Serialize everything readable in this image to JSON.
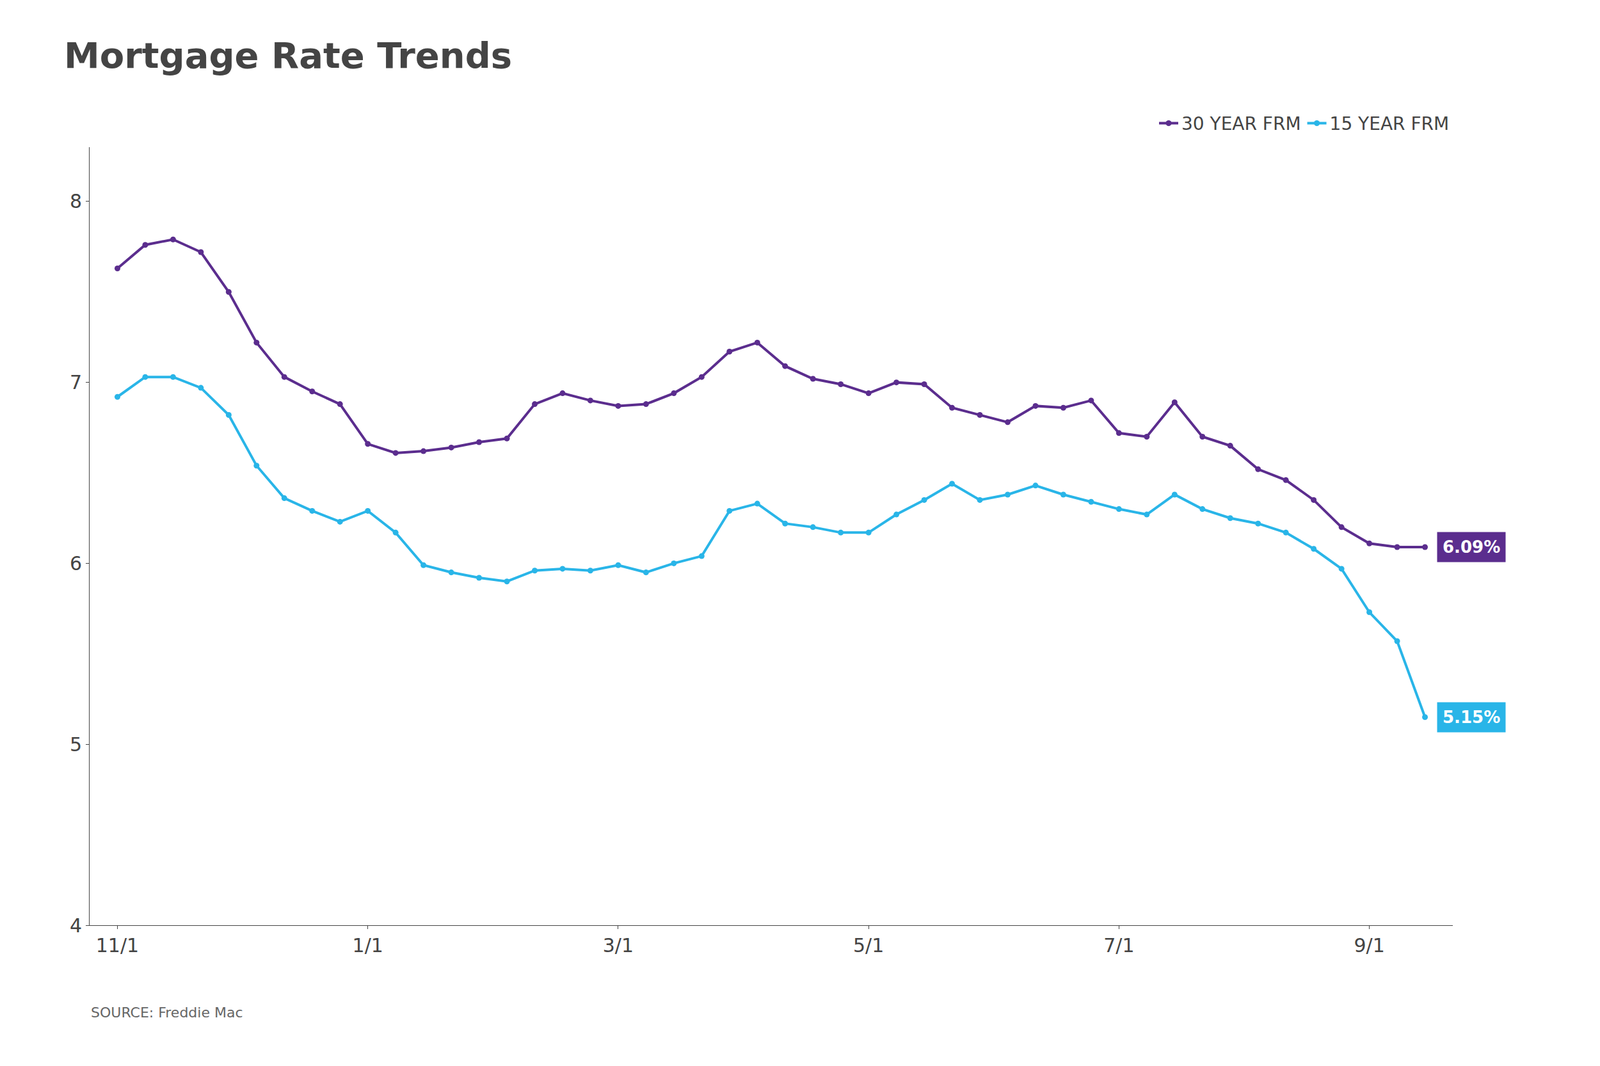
{
  "chart_data": {
    "type": "line",
    "title": "Mortgage Rate Trends",
    "source": "SOURCE: Freddie Mac",
    "x": [
      0,
      1,
      2,
      3,
      4,
      5,
      6,
      7,
      8,
      9,
      10,
      11,
      12,
      13,
      14,
      15,
      16,
      17,
      18,
      19,
      20,
      21,
      22,
      23,
      24,
      25,
      26,
      27,
      28,
      29,
      30,
      31,
      32,
      33,
      34,
      35,
      36,
      37,
      38,
      39,
      40,
      41,
      42,
      43,
      44,
      45,
      46,
      47
    ],
    "series": [
      {
        "name": "30 YEAR FRM",
        "color": "#5B2D8E",
        "marker": "circle",
        "values": [
          7.63,
          7.76,
          7.79,
          7.72,
          7.5,
          7.22,
          7.03,
          6.95,
          6.88,
          6.66,
          6.61,
          6.62,
          6.64,
          6.67,
          6.69,
          6.88,
          6.94,
          6.9,
          6.87,
          6.88,
          6.94,
          7.03,
          7.17,
          7.22,
          7.09,
          7.02,
          6.99,
          6.94,
          7.0,
          6.99,
          6.86,
          6.82,
          6.78,
          6.87,
          6.86,
          6.9,
          6.72,
          6.7,
          6.89,
          6.7,
          6.65,
          6.52,
          6.46,
          6.35,
          6.2,
          6.11,
          6.09,
          6.09
        ]
      },
      {
        "name": "15 YEAR FRM",
        "color": "#29B5E8",
        "marker": "circle",
        "values": [
          6.92,
          7.03,
          7.03,
          6.97,
          6.82,
          6.54,
          6.36,
          6.29,
          6.23,
          6.29,
          6.17,
          5.99,
          5.95,
          5.92,
          5.9,
          5.96,
          5.97,
          5.96,
          5.99,
          5.95,
          6.0,
          6.04,
          6.29,
          6.33,
          6.22,
          6.2,
          6.17,
          6.17,
          6.27,
          6.35,
          6.44,
          6.35,
          6.38,
          6.43,
          6.38,
          6.34,
          6.3,
          6.27,
          6.38,
          6.3,
          6.25,
          6.22,
          6.17,
          6.08,
          5.97,
          5.73,
          5.57,
          5.15
        ]
      }
    ],
    "annotations": [
      {
        "text": "6.09%",
        "x": 47,
        "y": 6.09
      },
      {
        "text": "5.15%",
        "x": 47,
        "y": 5.15
      }
    ],
    "xlim": [
      -1,
      48
    ],
    "xticks": [
      {
        "value": 0,
        "label": "11/1"
      },
      {
        "value": 9,
        "label": "1/1"
      },
      {
        "value": 18,
        "label": "3/1"
      },
      {
        "value": 27,
        "label": "5/1"
      },
      {
        "value": 36,
        "label": "7/1"
      },
      {
        "value": 45,
        "label": "9/1"
      }
    ],
    "ylim": [
      4.0,
      8.3
    ],
    "yticks": [
      4,
      5,
      6,
      7,
      8
    ],
    "grid": false,
    "legend": "top right"
  }
}
